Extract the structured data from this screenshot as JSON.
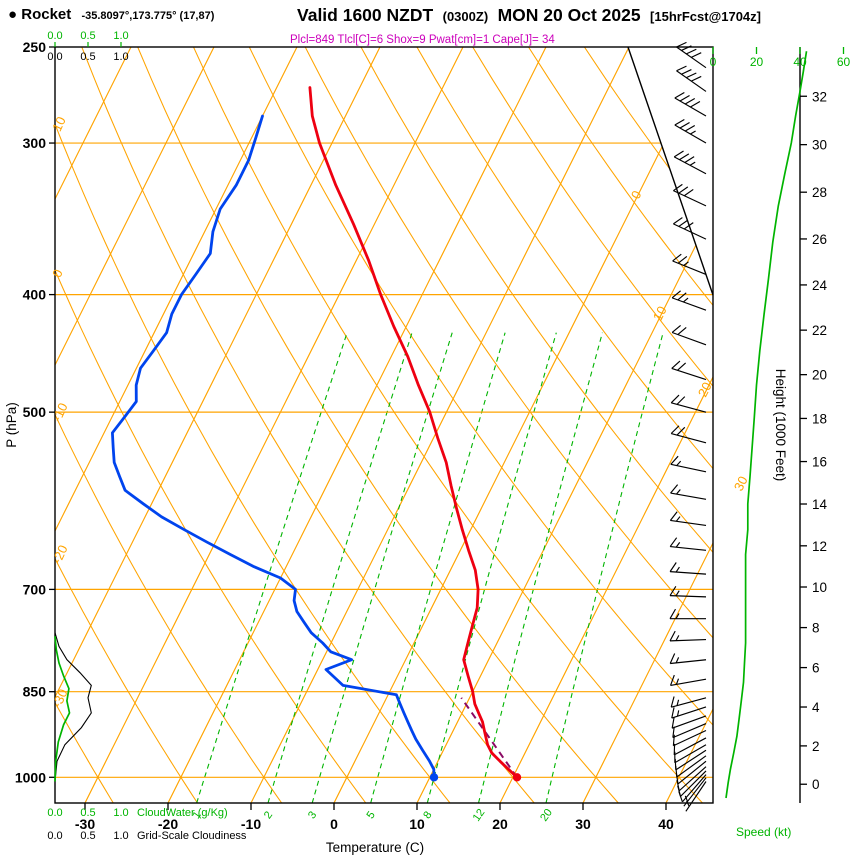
{
  "header": {
    "bullet": "●",
    "station": "Rocket",
    "coords": "-35.8097°,173.775° (17,87)",
    "valid_main": "Valid 1600 NZDT",
    "valid_z": "(0300Z)",
    "valid_date": "MON 20 Oct 2025",
    "fcst": "[15hrFcst@1704z]",
    "indices": "Plcl=849 Tlcl[C]=6 Shox=9 Pwat[cm]=1 Cape[J]= 34"
  },
  "chart_data": {
    "type": "skewt-log-p sounding",
    "axes": {
      "pressure_label": "P (hPa)",
      "pressure_ticks": [
        250,
        300,
        400,
        500,
        700,
        850,
        1000
      ],
      "temp_label": "Temperature (C)",
      "temp_ticks": [
        -30,
        -20,
        -10,
        0,
        10,
        20,
        30,
        40
      ],
      "height_label": "Height (1000 Feet)",
      "height_ticks": [
        0,
        2,
        4,
        6,
        8,
        10,
        12,
        14,
        16,
        18,
        20,
        22,
        24,
        26,
        28,
        30,
        32
      ],
      "speed_label": "Speed (kt)",
      "speed_ticks": [
        0,
        20,
        40,
        60
      ],
      "cw_scale": [
        "0.0",
        "0.5",
        "1.0"
      ],
      "cloudwater_label": "CloudWater (g/Kg)",
      "cloudiness_label": "Grid-Scale Cloudiness"
    },
    "grid": {
      "isotherm_range": {
        "min": -120,
        "max": 40,
        "step": 10
      },
      "adiabat_range": {
        "min": -60,
        "max": 130,
        "step": 10
      },
      "isotherm_label_values": [
        0,
        10,
        20,
        30
      ],
      "adiabat_label_values": [
        10,
        0,
        -10,
        -20,
        -30
      ],
      "mixing_ratio_values": [
        1,
        2,
        3,
        5,
        8,
        12,
        20
      ]
    },
    "colors": {
      "grid": "#ffa400",
      "mixing": "#00b400",
      "temperature": "#ee0011",
      "dewpoint": "#0044ee",
      "parcel": "#8b0a64",
      "indices": "#cc00bb",
      "barbs": "#000000"
    },
    "temperature_profile": [
      [
        1000,
        20.5
      ],
      [
        985,
        19
      ],
      [
        970,
        17.5
      ],
      [
        955,
        16
      ],
      [
        940,
        15
      ],
      [
        920,
        14
      ],
      [
        900,
        13
      ],
      [
        885,
        12
      ],
      [
        870,
        11
      ],
      [
        850,
        10
      ],
      [
        825,
        8.5
      ],
      [
        800,
        7
      ],
      [
        775,
        6.5
      ],
      [
        750,
        6
      ],
      [
        725,
        5.5
      ],
      [
        700,
        4.5
      ],
      [
        675,
        3
      ],
      [
        650,
        1
      ],
      [
        625,
        -1
      ],
      [
        600,
        -3
      ],
      [
        575,
        -5
      ],
      [
        550,
        -7
      ],
      [
        525,
        -9.5
      ],
      [
        500,
        -12
      ],
      [
        475,
        -15
      ],
      [
        450,
        -18
      ],
      [
        425,
        -21.5
      ],
      [
        400,
        -25
      ],
      [
        375,
        -28.5
      ],
      [
        350,
        -32.5
      ],
      [
        325,
        -37
      ],
      [
        300,
        -41.5
      ],
      [
        285,
        -44
      ],
      [
        270,
        -46
      ]
    ],
    "dewpoint_profile": [
      [
        1000,
        10.5
      ],
      [
        985,
        10
      ],
      [
        970,
        9
      ],
      [
        950,
        7.5
      ],
      [
        930,
        6
      ],
      [
        915,
        5
      ],
      [
        900,
        4
      ],
      [
        885,
        3
      ],
      [
        870,
        2
      ],
      [
        855,
        1
      ],
      [
        840,
        -6
      ],
      [
        815,
        -9
      ],
      [
        800,
        -6.5
      ],
      [
        788,
        -9.5
      ],
      [
        775,
        -11
      ],
      [
        760,
        -13
      ],
      [
        745,
        -14.5
      ],
      [
        730,
        -16
      ],
      [
        715,
        -17
      ],
      [
        700,
        -17.5
      ],
      [
        685,
        -20
      ],
      [
        670,
        -24
      ],
      [
        655,
        -27.5
      ],
      [
        640,
        -31
      ],
      [
        625,
        -34.5
      ],
      [
        610,
        -38
      ],
      [
        595,
        -41
      ],
      [
        580,
        -44
      ],
      [
        565,
        -45.5
      ],
      [
        550,
        -47
      ],
      [
        535,
        -48
      ],
      [
        520,
        -49
      ],
      [
        505,
        -48.5
      ],
      [
        490,
        -48
      ],
      [
        475,
        -49
      ],
      [
        460,
        -49.5
      ],
      [
        445,
        -49
      ],
      [
        430,
        -48.5
      ],
      [
        415,
        -49
      ],
      [
        400,
        -49
      ],
      [
        385,
        -48.5
      ],
      [
        370,
        -48
      ],
      [
        355,
        -49
      ],
      [
        340,
        -49.5
      ],
      [
        325,
        -49
      ],
      [
        310,
        -49
      ],
      [
        297,
        -49.5
      ],
      [
        285,
        -50
      ]
    ],
    "parcel_path": [
      [
        1000,
        20.5
      ],
      [
        860,
        9
      ]
    ],
    "surface_dots": {
      "p": 1000,
      "t": 20.5,
      "td": 10.5
    },
    "wind_barbs": [
      [
        260,
        305,
        42
      ],
      [
        272,
        305,
        40
      ],
      [
        285,
        300,
        38
      ],
      [
        300,
        300,
        36
      ],
      [
        318,
        298,
        34
      ],
      [
        338,
        295,
        30
      ],
      [
        360,
        295,
        28
      ],
      [
        385,
        292,
        26
      ],
      [
        412,
        290,
        24
      ],
      [
        440,
        290,
        22
      ],
      [
        470,
        288,
        20
      ],
      [
        500,
        285,
        19
      ],
      [
        530,
        285,
        18
      ],
      [
        560,
        282,
        17
      ],
      [
        590,
        280,
        16
      ],
      [
        620,
        278,
        16
      ],
      [
        650,
        276,
        15
      ],
      [
        680,
        274,
        15
      ],
      [
        710,
        272,
        15
      ],
      [
        740,
        270,
        15
      ],
      [
        770,
        268,
        15
      ],
      [
        800,
        264,
        14
      ],
      [
        830,
        260,
        14
      ],
      [
        860,
        255,
        13
      ],
      [
        875,
        252,
        13
      ],
      [
        890,
        250,
        12
      ],
      [
        903,
        247,
        12
      ],
      [
        915,
        245,
        11
      ],
      [
        928,
        242,
        11
      ],
      [
        940,
        240,
        10
      ],
      [
        950,
        237,
        10
      ],
      [
        960,
        234,
        9
      ],
      [
        970,
        231,
        9
      ],
      [
        980,
        228,
        8
      ],
      [
        988,
        225,
        8
      ],
      [
        995,
        221,
        8
      ],
      [
        1001,
        218,
        7
      ],
      [
        1008,
        214,
        7
      ]
    ],
    "speed_profile": [
      [
        1040,
        6
      ],
      [
        1010,
        7
      ],
      [
        985,
        8
      ],
      [
        955,
        9.5
      ],
      [
        925,
        11
      ],
      [
        895,
        12
      ],
      [
        865,
        13
      ],
      [
        835,
        14
      ],
      [
        805,
        14.5
      ],
      [
        775,
        15
      ],
      [
        745,
        15
      ],
      [
        715,
        15
      ],
      [
        685,
        15
      ],
      [
        655,
        15
      ],
      [
        625,
        16
      ],
      [
        595,
        16
      ],
      [
        565,
        17
      ],
      [
        535,
        18
      ],
      [
        505,
        19
      ],
      [
        475,
        20
      ],
      [
        445,
        21.5
      ],
      [
        415,
        23.5
      ],
      [
        388,
        25.5
      ],
      [
        362,
        27.5
      ],
      [
        338,
        30
      ],
      [
        318,
        33
      ],
      [
        300,
        36
      ],
      [
        285,
        38
      ],
      [
        272,
        40
      ],
      [
        262,
        41.5
      ],
      [
        252,
        43
      ]
    ],
    "cloudwater_profile": [
      [
        1008,
        0
      ],
      [
        970,
        0.01
      ],
      [
        935,
        0.05
      ],
      [
        905,
        0.13
      ],
      [
        885,
        0.22
      ],
      [
        865,
        0.18
      ],
      [
        845,
        0.21
      ],
      [
        825,
        0.13
      ],
      [
        805,
        0.06
      ],
      [
        785,
        0.02
      ],
      [
        765,
        0
      ]
    ],
    "cloudiness_profile": [
      [
        1008,
        0
      ],
      [
        970,
        0.03
      ],
      [
        940,
        0.15
      ],
      [
        910,
        0.4
      ],
      [
        885,
        0.55
      ],
      [
        860,
        0.5
      ],
      [
        840,
        0.55
      ],
      [
        820,
        0.38
      ],
      [
        800,
        0.18
      ],
      [
        780,
        0.06
      ],
      [
        760,
        0
      ]
    ]
  }
}
